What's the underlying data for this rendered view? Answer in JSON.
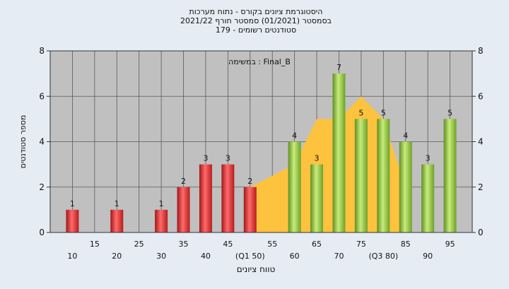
{
  "chart_data": {
    "type": "bar",
    "title_lines": [
      "היסטוגרמת ציונים בקורס - נתוח מערכות",
      "בסמסטר  (01/2021)  סמסטר חורף 2021/22",
      "סטודנטים רשומים - 179"
    ],
    "ylabel": "מספר סטודנטים",
    "xlabel": "טווח ציונים",
    "annotation": "במשימה : Final_B",
    "ylim": [
      0,
      8
    ],
    "yticks": [
      0,
      2,
      4,
      6,
      8
    ],
    "grid": true,
    "x_range": [
      5,
      100
    ],
    "x_ticks_upper": [
      "15",
      "25",
      "35",
      "45",
      "55",
      "65",
      "75",
      "85",
      "95"
    ],
    "x_ticks_lower": [
      "10",
      "20",
      "30",
      "40",
      "(Q1 50)",
      "60",
      "70",
      "(Q3 80)",
      "90"
    ],
    "bars": [
      {
        "x": 10,
        "value": 1,
        "group": "fail"
      },
      {
        "x": 20,
        "value": 1,
        "group": "fail"
      },
      {
        "x": 30,
        "value": 1,
        "group": "fail"
      },
      {
        "x": 35,
        "value": 2,
        "group": "fail"
      },
      {
        "x": 40,
        "value": 3,
        "group": "fail"
      },
      {
        "x": 45,
        "value": 3,
        "group": "fail"
      },
      {
        "x": 50,
        "value": 2,
        "group": "fail"
      },
      {
        "x": 60,
        "value": 4,
        "group": "pass"
      },
      {
        "x": 65,
        "value": 3,
        "group": "pass"
      },
      {
        "x": 70,
        "value": 7,
        "group": "pass"
      },
      {
        "x": 75,
        "value": 5,
        "group": "pass"
      },
      {
        "x": 80,
        "value": 5,
        "group": "pass"
      },
      {
        "x": 85,
        "value": 4,
        "group": "pass"
      },
      {
        "x": 90,
        "value": 3,
        "group": "pass"
      },
      {
        "x": 95,
        "value": 5,
        "group": "pass"
      }
    ],
    "area_series": {
      "x": [
        50,
        60,
        65,
        70,
        75,
        80,
        85,
        85
      ],
      "y": [
        2,
        3,
        5,
        5,
        6,
        5,
        2,
        0
      ]
    },
    "colors": {
      "fail": "#e03030",
      "pass": "#8cc63f",
      "area": "#fdc23e",
      "plot_bg": "#c0c0c0",
      "page_bg": "#e6ecf3"
    }
  }
}
